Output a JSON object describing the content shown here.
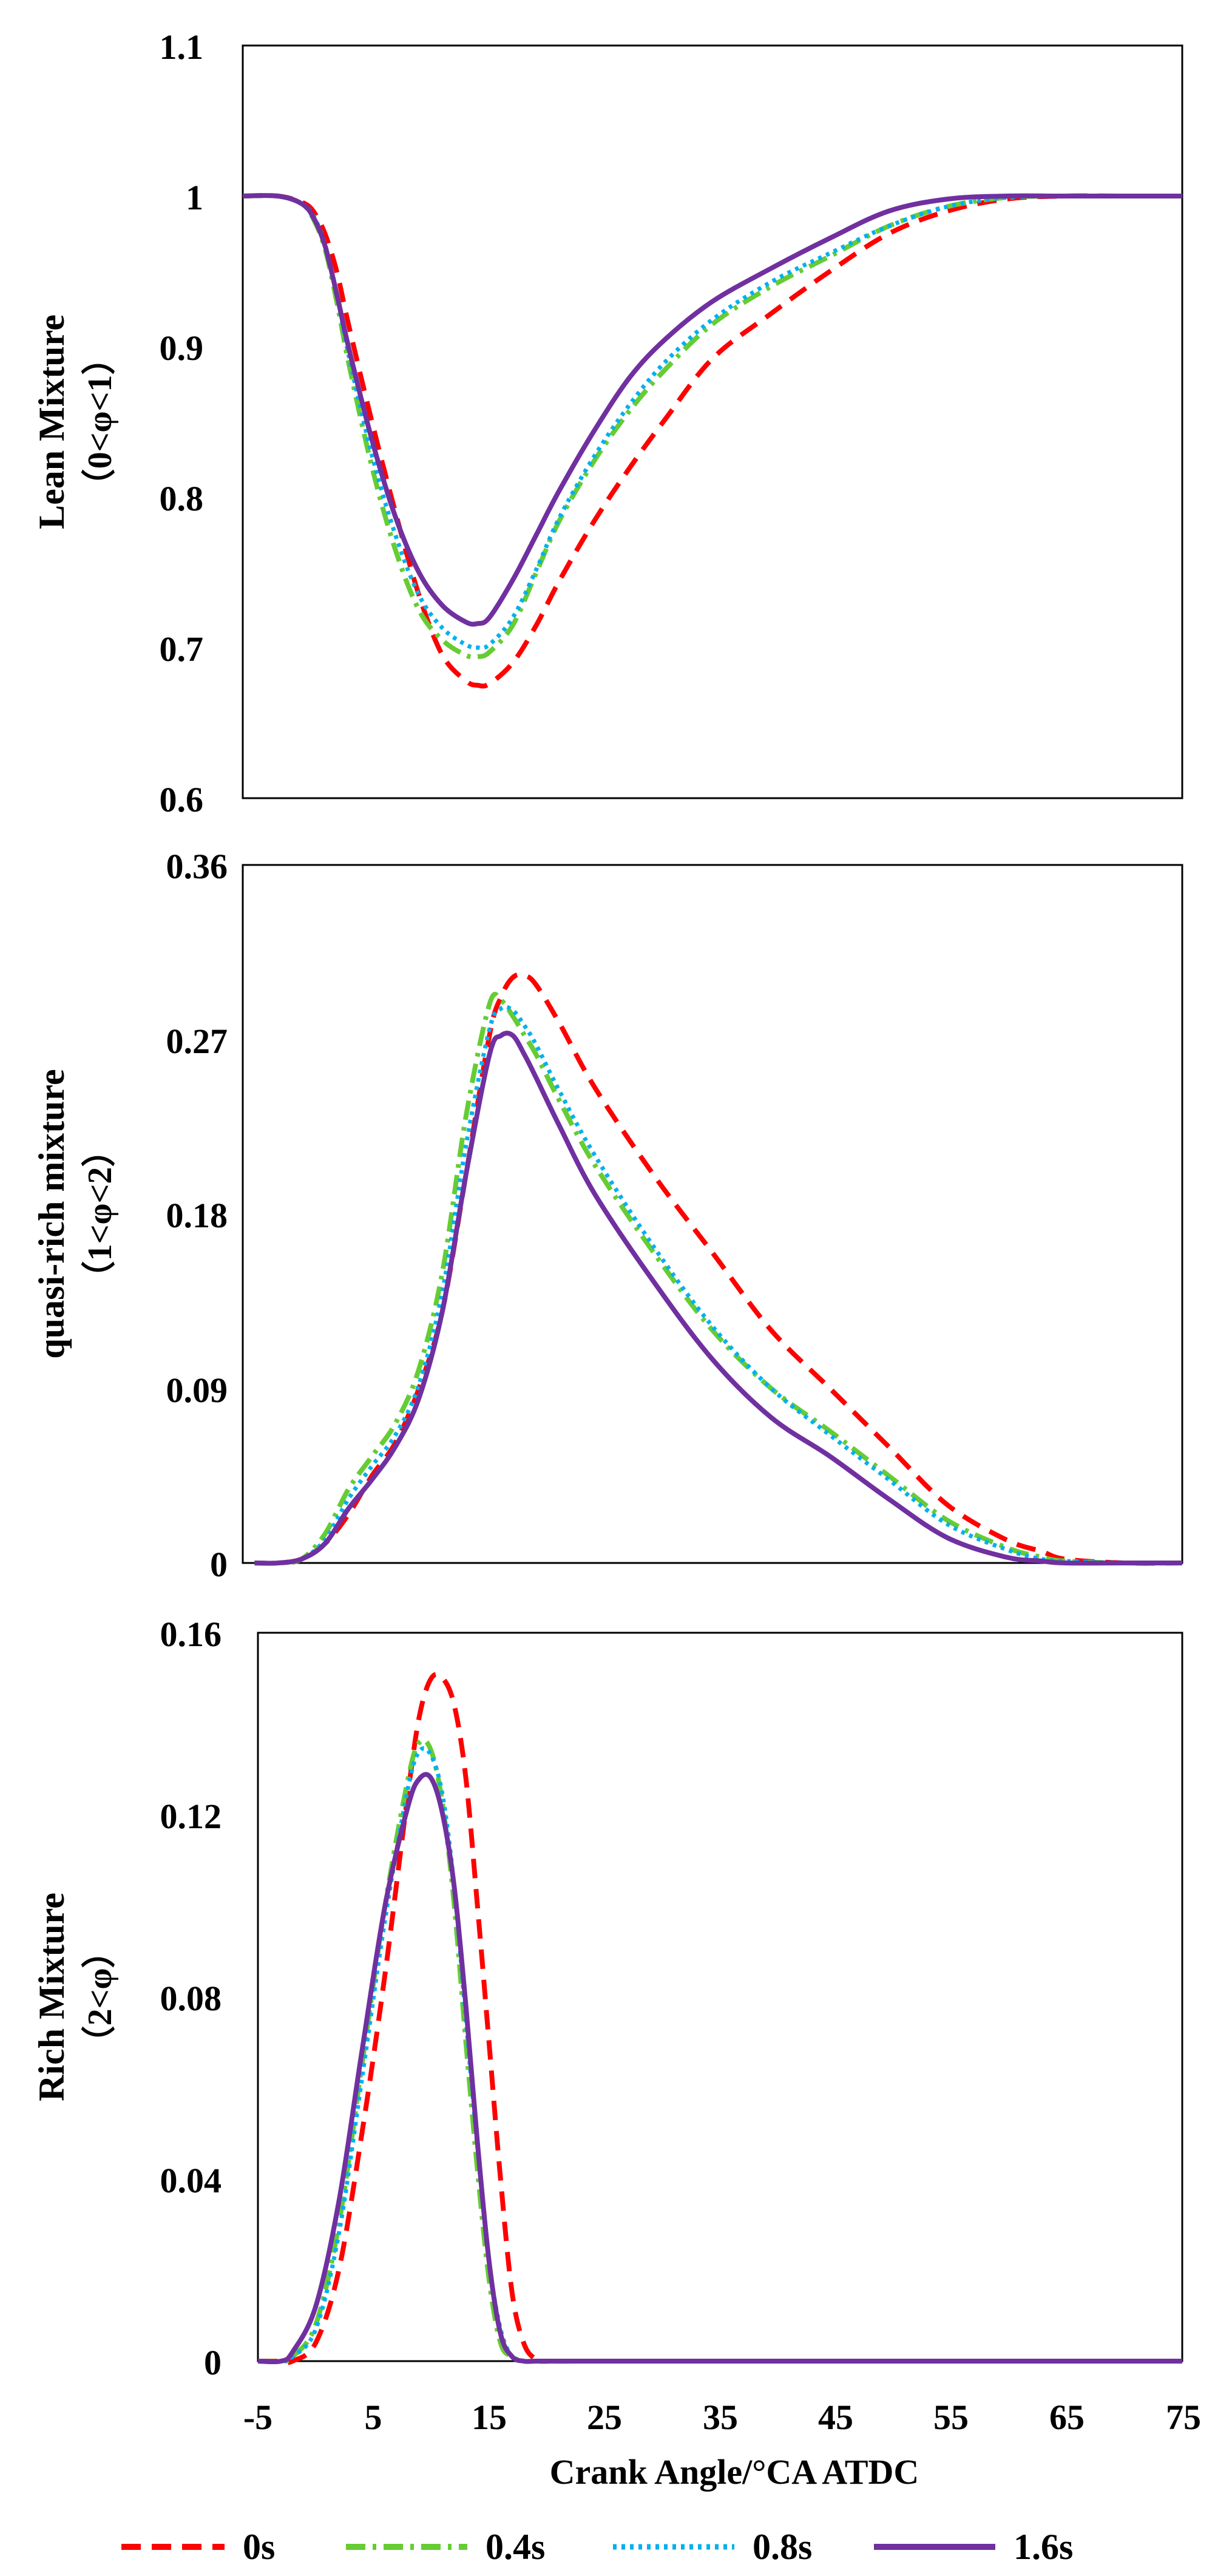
{
  "chart_data": {
    "type": "line",
    "xlabel": "Crank Angle/°CA  ATDC",
    "xlim": [
      -5,
      75
    ],
    "xticks": [
      "-5",
      "5",
      "15",
      "25",
      "35",
      "45",
      "55",
      "65",
      "75"
    ],
    "legend_position": "bottom",
    "series_styles": [
      {
        "name": "0s",
        "color": "#ff0000",
        "dash": "dashed"
      },
      {
        "name": "0.4s",
        "color": "#66cc33",
        "dash": "dash-dot"
      },
      {
        "name": "0.8s",
        "color": "#00b0f0",
        "dash": "dotted"
      },
      {
        "name": "1.6s",
        "color": "#7030a0",
        "dash": "solid"
      }
    ],
    "panels": [
      {
        "id": "lean",
        "ylabel": "Lean Mixture",
        "ylabel2": "（0<φ<1）",
        "ylim": [
          0.6,
          1.1
        ],
        "yticks": [
          "0.6",
          "0.7",
          "0.8",
          "0.9",
          "1",
          "1.1"
        ],
        "x": [
          -5,
          -2,
          0,
          1,
          2,
          3,
          4,
          6,
          8,
          10,
          12,
          14,
          15,
          16,
          18,
          20,
          22,
          25,
          28,
          31,
          35,
          40,
          45,
          50,
          55,
          60,
          65,
          70,
          75
        ],
        "series": [
          {
            "name": "0s",
            "values": [
              1.0,
              1.0,
              0.996,
              0.99,
              0.975,
              0.95,
              0.915,
              0.85,
              0.79,
              0.735,
              0.695,
              0.678,
              0.675,
              0.676,
              0.69,
              0.715,
              0.745,
              0.785,
              0.82,
              0.852,
              0.892,
              0.922,
              0.95,
              0.975,
              0.99,
              0.998,
              1.0,
              1.0,
              1.0
            ]
          },
          {
            "name": "0.4s",
            "values": [
              1.0,
              1.0,
              0.995,
              0.985,
              0.965,
              0.93,
              0.89,
              0.82,
              0.765,
              0.725,
              0.705,
              0.695,
              0.694,
              0.697,
              0.715,
              0.75,
              0.785,
              0.825,
              0.858,
              0.885,
              0.915,
              0.94,
              0.96,
              0.98,
              0.993,
              0.999,
              1.0,
              1.0,
              1.0
            ]
          },
          {
            "name": "0.8s",
            "values": [
              1.0,
              1.0,
              0.995,
              0.987,
              0.968,
              0.935,
              0.895,
              0.828,
              0.775,
              0.735,
              0.713,
              0.702,
              0.7,
              0.702,
              0.72,
              0.752,
              0.787,
              0.828,
              0.862,
              0.89,
              0.918,
              0.943,
              0.962,
              0.98,
              0.993,
              0.999,
              1.0,
              1.0,
              1.0
            ]
          },
          {
            "name": "1.6s",
            "values": [
              1.0,
              1.0,
              0.995,
              0.986,
              0.967,
              0.935,
              0.9,
              0.838,
              0.787,
              0.75,
              0.728,
              0.717,
              0.716,
              0.72,
              0.745,
              0.775,
              0.805,
              0.845,
              0.88,
              0.905,
              0.93,
              0.952,
              0.972,
              0.99,
              0.998,
              1.0,
              1.0,
              1.0,
              1.0
            ]
          }
        ]
      },
      {
        "id": "quasi",
        "ylabel": "quasi-rich mixture",
        "ylabel2": "（1<φ<2）",
        "ylim": [
          0,
          0.36
        ],
        "yticks": [
          "0",
          "0.09",
          "0.18",
          "0.27",
          "0.36"
        ],
        "x": [
          -4,
          -2,
          0,
          2,
          4,
          6,
          8,
          10,
          12,
          14,
          16,
          17,
          18,
          19,
          20,
          22,
          25,
          30,
          35,
          40,
          45,
          50,
          55,
          60,
          63,
          65,
          70,
          75
        ],
        "series": [
          {
            "name": "0s",
            "values": [
              0,
              0,
              0.002,
              0.01,
              0.025,
              0.045,
              0.062,
              0.09,
              0.13,
              0.2,
              0.272,
              0.292,
              0.302,
              0.303,
              0.298,
              0.278,
              0.245,
              0.2,
              0.16,
              0.12,
              0.09,
              0.06,
              0.03,
              0.012,
              0.006,
              0.002,
              0,
              0
            ]
          },
          {
            "name": "0.4s",
            "values": [
              0,
              0,
              0.002,
              0.015,
              0.038,
              0.055,
              0.072,
              0.1,
              0.15,
              0.23,
              0.288,
              0.29,
              0.282,
              0.272,
              0.262,
              0.238,
              0.205,
              0.16,
              0.12,
              0.09,
              0.068,
              0.045,
              0.022,
              0.008,
              0.003,
              0.001,
              0,
              0
            ]
          },
          {
            "name": "0.8s",
            "values": [
              0,
              0,
              0.002,
              0.012,
              0.033,
              0.05,
              0.066,
              0.092,
              0.14,
              0.215,
              0.275,
              0.286,
              0.285,
              0.277,
              0.267,
              0.243,
              0.21,
              0.163,
              0.122,
              0.09,
              0.066,
              0.043,
              0.02,
              0.007,
              0.002,
              0.001,
              0,
              0
            ]
          },
          {
            "name": "1.6s",
            "values": [
              0,
              0,
              0.002,
              0.01,
              0.028,
              0.043,
              0.06,
              0.085,
              0.13,
              0.2,
              0.262,
              0.272,
              0.272,
              0.262,
              0.25,
              0.225,
              0.19,
              0.145,
              0.105,
              0.075,
              0.055,
              0.033,
              0.013,
              0.003,
              0.001,
              0,
              0,
              0
            ]
          }
        ]
      },
      {
        "id": "rich",
        "ylabel": "Rich Mixture",
        "ylabel2": "（2<φ）",
        "ylim": [
          0,
          0.16
        ],
        "yticks": [
          "0",
          "0.04",
          "0.08",
          "0.12",
          "0.16"
        ],
        "x": [
          -5,
          -3,
          -2,
          0,
          2,
          4,
          6,
          8,
          9,
          10,
          11,
          12,
          13,
          14,
          15,
          16,
          17,
          18,
          19,
          20,
          25,
          75
        ],
        "series": [
          {
            "name": "0s",
            "values": [
              0,
              0,
              0.0,
              0.004,
              0.02,
              0.05,
              0.085,
              0.125,
              0.142,
              0.15,
              0.15,
              0.144,
              0.128,
              0.1,
              0.07,
              0.04,
              0.015,
              0.004,
              0.0005,
              0,
              0,
              0
            ]
          },
          {
            "name": "0.4s",
            "values": [
              0,
              0,
              0.001,
              0.008,
              0.03,
              0.065,
              0.1,
              0.128,
              0.136,
              0.134,
              0.122,
              0.1,
              0.07,
              0.042,
              0.018,
              0.004,
              0.001,
              0,
              0,
              0,
              0,
              0
            ]
          },
          {
            "name": "0.8s",
            "values": [
              0,
              0,
              0.001,
              0.007,
              0.028,
              0.062,
              0.097,
              0.126,
              0.134,
              0.133,
              0.124,
              0.104,
              0.075,
              0.047,
              0.022,
              0.007,
              0.001,
              0,
              0,
              0,
              0,
              0
            ]
          },
          {
            "name": "1.6s",
            "values": [
              0,
              0,
              0.002,
              0.012,
              0.035,
              0.068,
              0.1,
              0.122,
              0.128,
              0.128,
              0.12,
              0.104,
              0.078,
              0.048,
              0.022,
              0.006,
              0.001,
              0,
              0,
              0,
              0,
              0
            ]
          }
        ]
      }
    ]
  }
}
